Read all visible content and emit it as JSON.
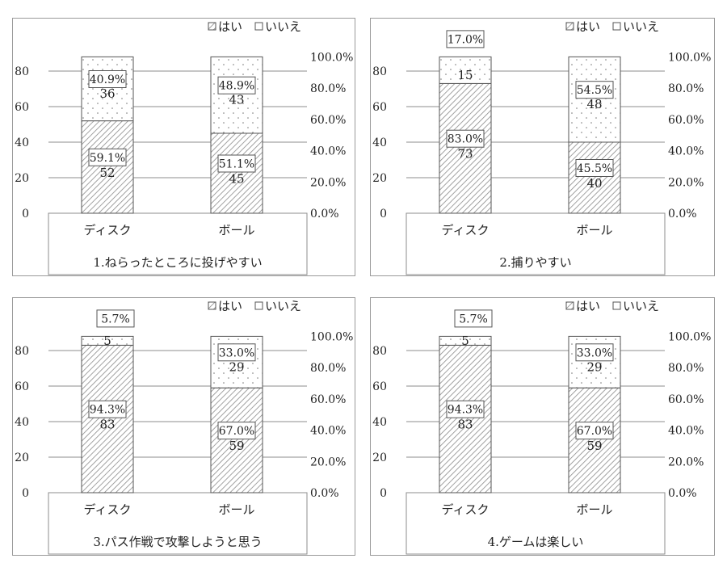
{
  "legend": {
    "yes": "はい",
    "no": "いいえ"
  },
  "chart_data": [
    {
      "type": "bar",
      "stacked": true,
      "title": "1.ねらったところに投げやすい",
      "categories": [
        "ディスク",
        "ボール"
      ],
      "series": [
        {
          "name": "はい",
          "values": [
            52,
            45
          ],
          "percent_labels": [
            "59.1%",
            "51.1%"
          ]
        },
        {
          "name": "いいえ",
          "values": [
            36,
            43
          ],
          "percent_labels": [
            "40.9%",
            "48.9%"
          ]
        }
      ],
      "ylim": [
        0,
        90
      ],
      "yticks": [
        0,
        20,
        40,
        60,
        80
      ],
      "y2ticks": [
        "0.0%",
        "20.0%",
        "40.0%",
        "60.0%",
        "80.0%",
        "100.0%"
      ],
      "legend_position": "top-right",
      "grid": true
    },
    {
      "type": "bar",
      "stacked": true,
      "title": "2.捕りやすい",
      "categories": [
        "ディスク",
        "ボール"
      ],
      "series": [
        {
          "name": "はい",
          "values": [
            73,
            40
          ],
          "percent_labels": [
            "83.0%",
            "45.5%"
          ]
        },
        {
          "name": "いいえ",
          "values": [
            15,
            48
          ],
          "percent_labels": [
            "17.0%",
            "54.5%"
          ]
        }
      ],
      "ylim": [
        0,
        90
      ],
      "yticks": [
        0,
        20,
        40,
        60,
        80
      ],
      "y2ticks": [
        "0.0%",
        "20.0%",
        "40.0%",
        "60.0%",
        "80.0%",
        "100.0%"
      ],
      "legend_position": "top-right",
      "grid": true
    },
    {
      "type": "bar",
      "stacked": true,
      "title": "3.パス作戦で攻撃しようと思う",
      "categories": [
        "ディスク",
        "ボール"
      ],
      "series": [
        {
          "name": "はい",
          "values": [
            83,
            59
          ],
          "percent_labels": [
            "94.3%",
            "67.0%"
          ]
        },
        {
          "name": "いいえ",
          "values": [
            5,
            29
          ],
          "percent_labels": [
            "5.7%",
            "33.0%"
          ]
        }
      ],
      "ylim": [
        0,
        90
      ],
      "yticks": [
        0,
        20,
        40,
        60,
        80
      ],
      "y2ticks": [
        "0.0%",
        "20.0%",
        "40.0%",
        "60.0%",
        "80.0%",
        "100.0%"
      ],
      "legend_position": "top-right",
      "grid": true
    },
    {
      "type": "bar",
      "stacked": true,
      "title": "4.ゲームは楽しい",
      "categories": [
        "ディスク",
        "ボール"
      ],
      "series": [
        {
          "name": "はい",
          "values": [
            83,
            59
          ],
          "percent_labels": [
            "94.3%",
            "67.0%"
          ]
        },
        {
          "name": "いいえ",
          "values": [
            5,
            29
          ],
          "percent_labels": [
            "5.7%",
            "33.0%"
          ]
        }
      ],
      "ylim": [
        0,
        90
      ],
      "yticks": [
        0,
        20,
        40,
        60,
        80
      ],
      "y2ticks": [
        "0.0%",
        "20.0%",
        "40.0%",
        "60.0%",
        "80.0%",
        "100.0%"
      ],
      "legend_position": "top-right",
      "grid": true
    }
  ]
}
